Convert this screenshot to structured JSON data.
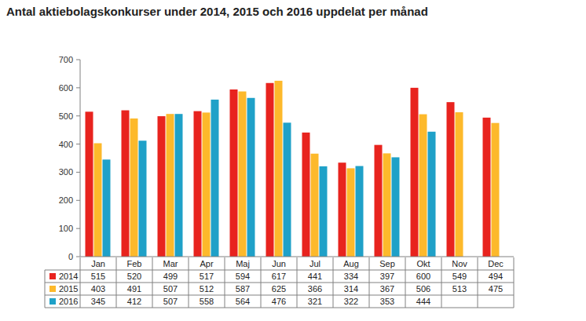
{
  "chart_data": {
    "type": "bar",
    "title": "Antal aktiebolagskonkurser under 2014, 2015 och 2016 uppdelat per månad",
    "categories": [
      "Jan",
      "Feb",
      "Mar",
      "Apr",
      "Maj",
      "Jun",
      "Jul",
      "Aug",
      "Sep",
      "Okt",
      "Nov",
      "Dec"
    ],
    "series": [
      {
        "name": "2014",
        "color": "#e8231e",
        "values": [
          515,
          520,
          499,
          517,
          594,
          617,
          441,
          334,
          397,
          600,
          549,
          494
        ]
      },
      {
        "name": "2015",
        "color": "#fdb92b",
        "values": [
          403,
          491,
          507,
          512,
          587,
          625,
          366,
          314,
          367,
          506,
          513,
          475
        ]
      },
      {
        "name": "2016",
        "color": "#1fa1c8",
        "values": [
          345,
          412,
          507,
          558,
          564,
          476,
          321,
          322,
          353,
          444,
          null,
          null
        ]
      }
    ],
    "ylim": [
      0,
      700
    ],
    "yticks": [
      0,
      100,
      200,
      300,
      400,
      500,
      600,
      700
    ],
    "grid": false,
    "data_labels": true
  }
}
